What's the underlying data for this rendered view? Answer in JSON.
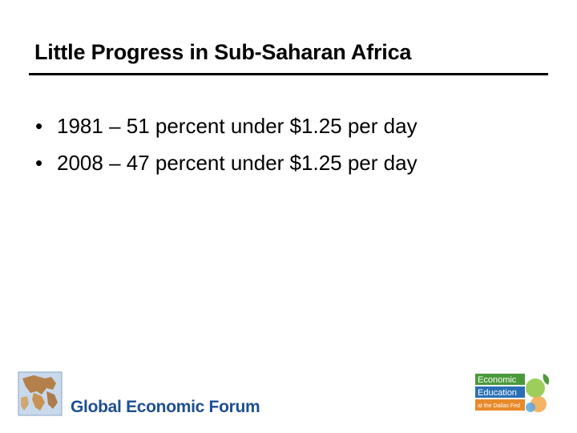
{
  "slide": {
    "title": "Little Progress in Sub-Saharan Africa",
    "bullet_symbol": "•",
    "bullets": [
      "1981 – 51 percent under $1.25 per day",
      "2008 – 47 percent under $1.25 per day"
    ]
  },
  "footer": {
    "left_logo_text": "Global Economic Forum",
    "right_logo_lines": [
      "Economic",
      "Education",
      "at the Dallas Fed"
    ]
  },
  "colors": {
    "gef_blue": "#1e4f91",
    "econ_green": "#4a9a3a",
    "econ_orange": "#e88a2a",
    "econ_blue": "#2a6fb5"
  }
}
